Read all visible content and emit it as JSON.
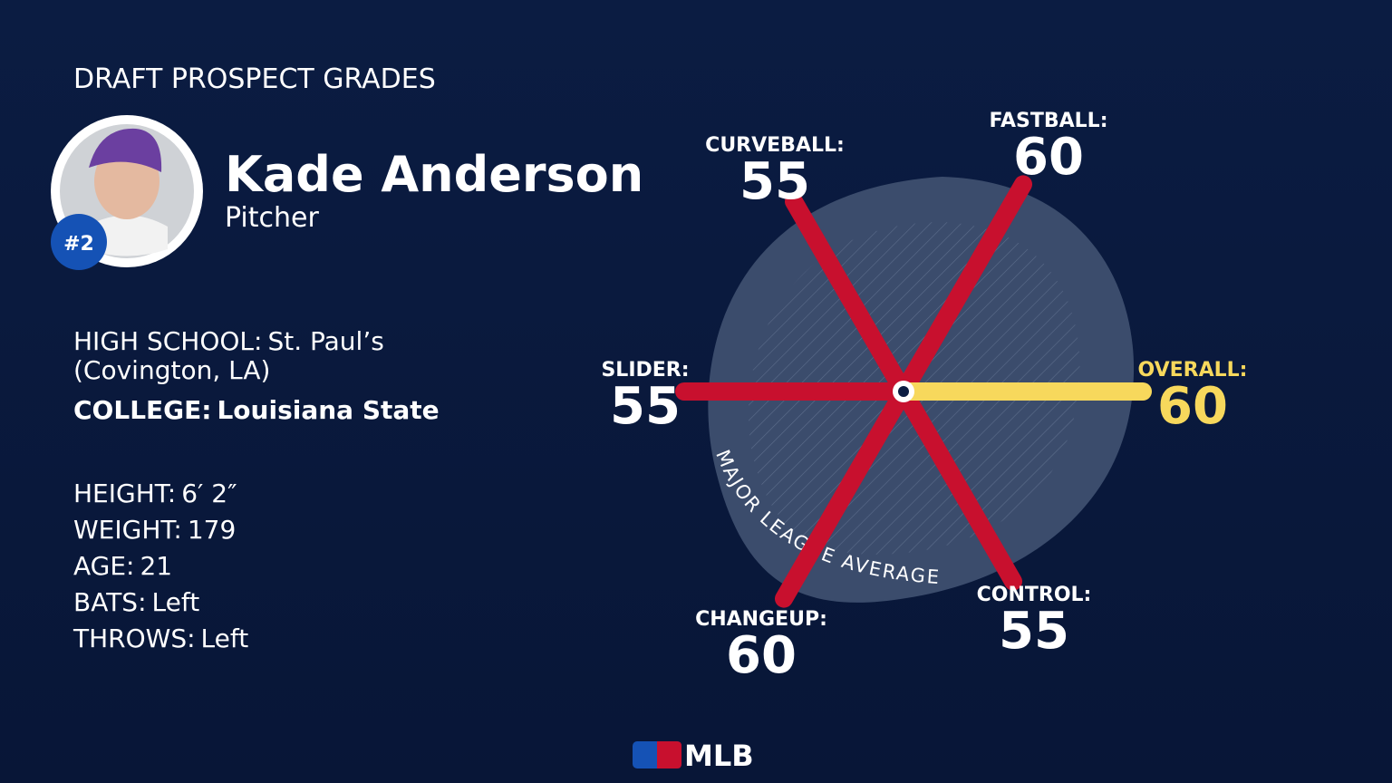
{
  "header": {
    "title": "DRAFT PROSPECT GRADES"
  },
  "player": {
    "name": "Kade Anderson",
    "position": "Pitcher",
    "rank": "#2"
  },
  "schools": [
    {
      "label": "HIGH SCHOOL:",
      "value": "St. Paul’s",
      "value2": "(Covington, LA)"
    },
    {
      "label": "COLLEGE:",
      "value": "Louisiana State"
    }
  ],
  "details": [
    {
      "label": "HEIGHT:",
      "value": "6′ 2″"
    },
    {
      "label": "WEIGHT:",
      "value": "179"
    },
    {
      "label": "AGE:",
      "value": "21"
    },
    {
      "label": "BATS:",
      "value": "Left"
    },
    {
      "label": "THROWS:",
      "value": "Left"
    }
  ],
  "grades": [
    {
      "label": "FASTBALL:",
      "value": 60
    },
    {
      "label": "CURVEBALL:",
      "value": 55
    },
    {
      "label": "SLIDER:",
      "value": 55
    },
    {
      "label": "CHANGEUP:",
      "value": 60
    },
    {
      "label": "CONTROL:",
      "value": 55
    },
    {
      "label": "OVERALL:",
      "value": 60
    }
  ],
  "average_label": "MAJOR LEAGUE AVERAGE",
  "logo": "MLB"
}
